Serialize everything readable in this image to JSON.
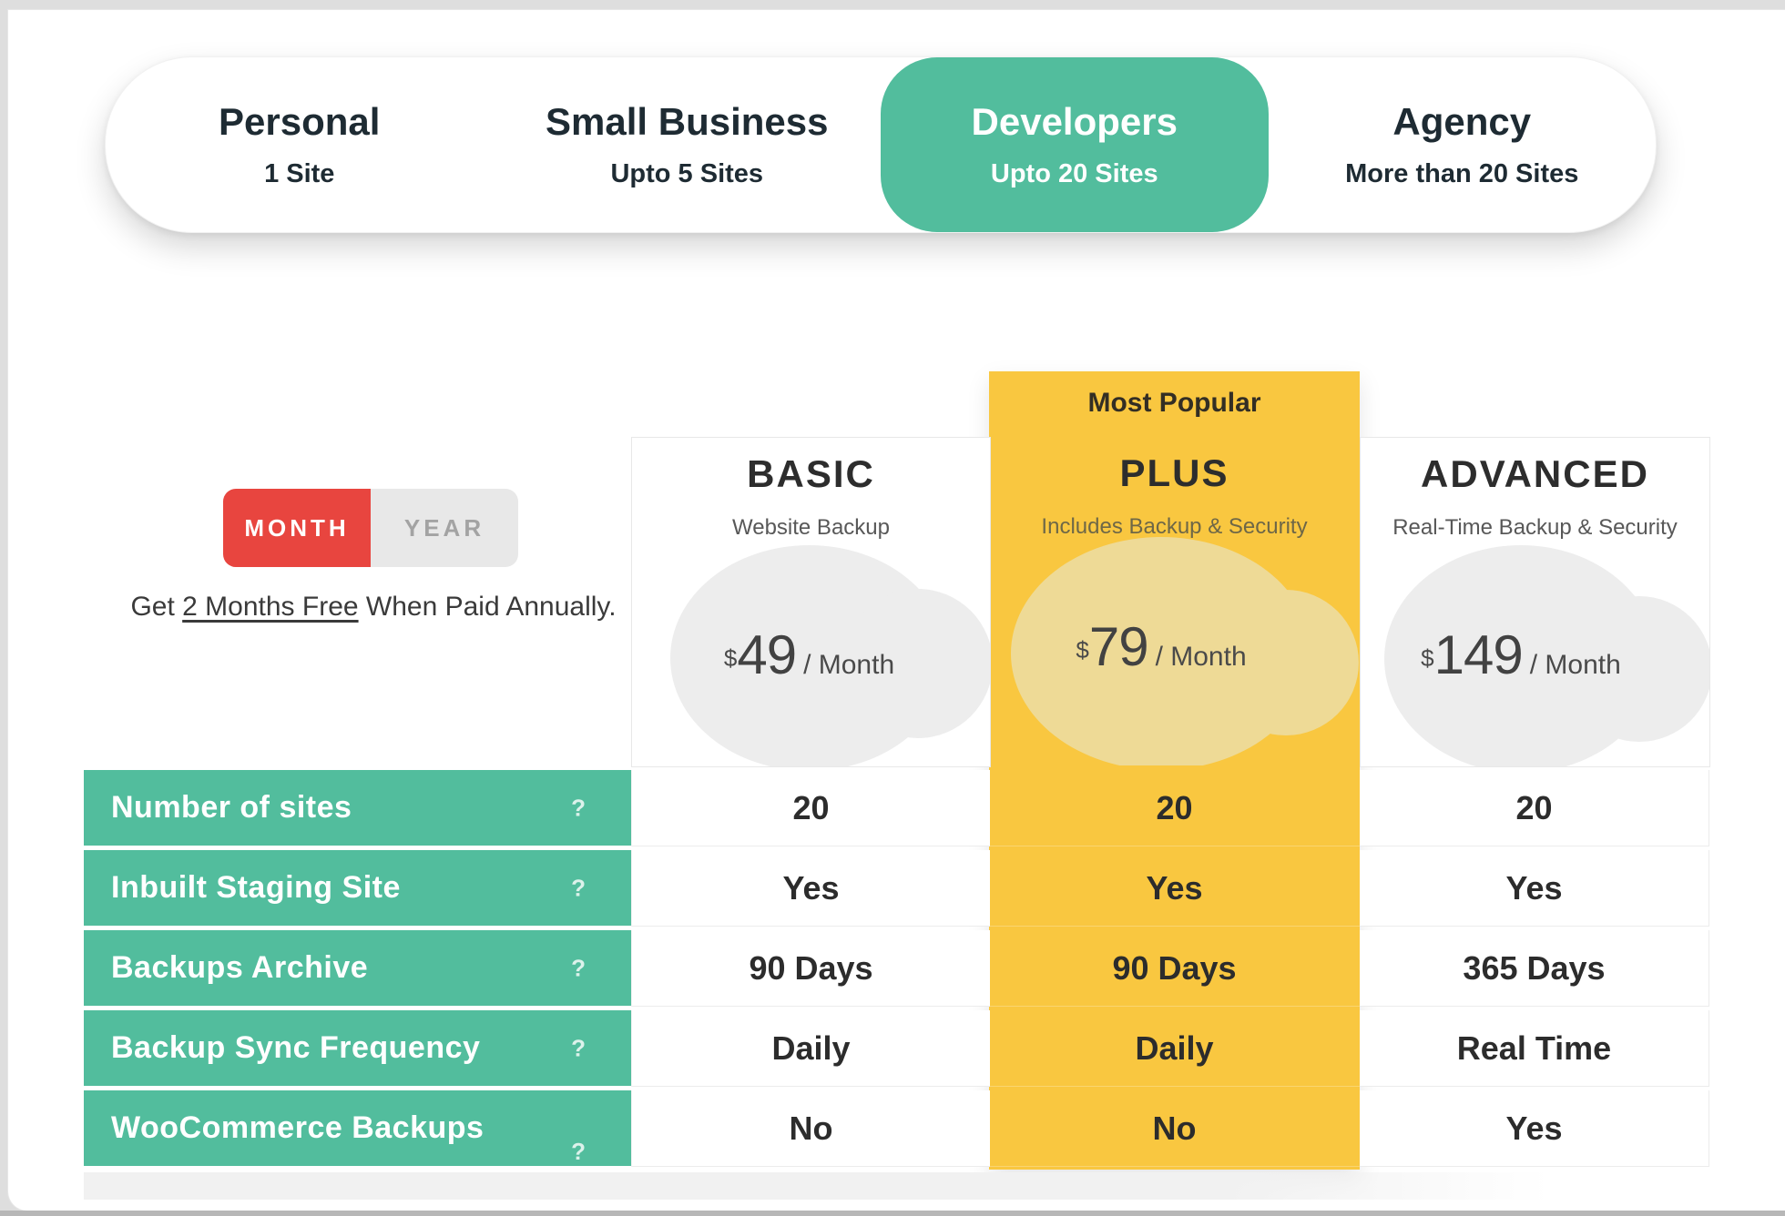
{
  "plan_tabs": {
    "items": [
      {
        "title": "Personal",
        "subtitle": "1 Site",
        "active": false
      },
      {
        "title": "Small Business",
        "subtitle": "Upto 5 Sites",
        "active": false
      },
      {
        "title": "Developers",
        "subtitle": "Upto 20 Sites",
        "active": true
      },
      {
        "title": "Agency",
        "subtitle": "More than 20 Sites",
        "active": false
      }
    ]
  },
  "billing": {
    "month_label": "MONTH",
    "year_label": "YEAR",
    "selected": "MONTH",
    "note_prefix": "Get ",
    "note_underline": "2 Months Free",
    "note_suffix": " When Paid Annually."
  },
  "plans": [
    {
      "name": "BASIC",
      "tagline": "Website Backup",
      "currency": "$",
      "price": "49",
      "period": "/ Month",
      "badge": "",
      "highlighted": false
    },
    {
      "name": "PLUS",
      "tagline": "Includes Backup & Security",
      "currency": "$",
      "price": "79",
      "period": "/ Month",
      "badge": "Most Popular",
      "highlighted": true
    },
    {
      "name": "ADVANCED",
      "tagline": "Real-Time Backup & Security",
      "currency": "$",
      "price": "149",
      "period": "/ Month",
      "badge": "",
      "highlighted": false
    }
  ],
  "features": {
    "help_icon": "?",
    "rows": [
      {
        "label": "Number of sites",
        "values": [
          "20",
          "20",
          "20"
        ]
      },
      {
        "label": "Inbuilt Staging Site",
        "values": [
          "Yes",
          "Yes",
          "Yes"
        ]
      },
      {
        "label": "Backups Archive",
        "values": [
          "90 Days",
          "90 Days",
          "365 Days"
        ]
      },
      {
        "label": "Backup Sync Frequency",
        "values": [
          "Daily",
          "Daily",
          "Real Time"
        ]
      },
      {
        "label": "WooCommerce Backups",
        "values": [
          "No",
          "No",
          "Yes"
        ]
      }
    ]
  },
  "colors": {
    "green": "#52bd9d",
    "yellow": "#f9c740",
    "yellow_blob": "#eeda96",
    "red": "#e8453f",
    "dark": "#1e2b33",
    "gray_blob": "#ededed"
  }
}
